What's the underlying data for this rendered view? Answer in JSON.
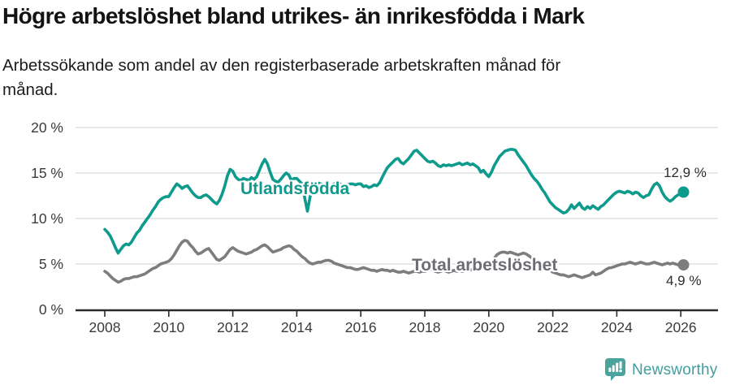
{
  "header": {
    "title": "Högre arbetslöshet bland utrikes- än inrikesfödda i Mark",
    "subtitle_line1": "Arbetssökande som andel av den registerbaserade arbetskraften månad för",
    "subtitle_line2": "månad."
  },
  "footer": {
    "brand": "Newsworthy",
    "brand_color": "#419e9e",
    "icon": "speech-bubble-bar-chart"
  },
  "chart_data": {
    "type": "line",
    "title": "Högre arbetslöshet bland utrikes- än inrikesfödda i Mark",
    "subtitle": "Arbetssökande som andel av den registerbaserade arbetskraften månad för månad.",
    "x_unit": "month",
    "x_start": "2008-01",
    "x_end": "2026-02",
    "x_tick_labels": [
      "2008",
      "2010",
      "2012",
      "2014",
      "2016",
      "2018",
      "2020",
      "2022",
      "2024",
      "2026"
    ],
    "y_tick_labels": [
      "0 %",
      "5 %",
      "10 %",
      "15 %",
      "20 %"
    ],
    "y_tick_values": [
      0,
      5,
      10,
      15,
      20
    ],
    "ylim": [
      0,
      20
    ],
    "grid": "horizontal",
    "gridline_color": "#d9d9d9",
    "axis_color": "#2b2b2b",
    "tick_label_color": "#3a3a3a",
    "legend_position": "inline-labels",
    "series": [
      {
        "name": "Utlandsfödda",
        "color": "#0e9a8c",
        "end_label": "12,9 %",
        "end_value": 12.9,
        "values": [
          8.8,
          8.5,
          8.1,
          7.5,
          6.8,
          6.2,
          6.6,
          7.0,
          7.2,
          7.1,
          7.4,
          7.9,
          8.4,
          8.7,
          9.2,
          9.6,
          10.0,
          10.4,
          10.9,
          11.3,
          11.8,
          12.1,
          12.3,
          12.4,
          12.4,
          12.9,
          13.4,
          13.8,
          13.6,
          13.3,
          13.5,
          13.6,
          13.2,
          12.8,
          12.5,
          12.3,
          12.3,
          12.5,
          12.6,
          12.4,
          12.1,
          11.8,
          11.6,
          12.0,
          12.7,
          13.6,
          14.7,
          15.4,
          15.2,
          14.6,
          14.3,
          14.2,
          14.4,
          14.3,
          14.2,
          14.5,
          14.3,
          14.6,
          15.3,
          16.0,
          16.5,
          16.0,
          15.1,
          14.3,
          14.1,
          14.0,
          14.3,
          14.7,
          15.0,
          14.8,
          14.2,
          14.4,
          14.4,
          14.1,
          13.8,
          12.2,
          10.8,
          12.4,
          13.5,
          13.8,
          13.9,
          13.8,
          13.7,
          13.6,
          13.6,
          13.7,
          13.8,
          13.9,
          13.8,
          13.7,
          13.6,
          13.7,
          13.8,
          13.8,
          13.7,
          13.8,
          13.8,
          13.5,
          13.6,
          13.4,
          13.5,
          13.7,
          13.6,
          13.9,
          14.5,
          15.1,
          15.6,
          15.9,
          16.2,
          16.5,
          16.6,
          16.2,
          16.0,
          16.3,
          16.6,
          17.0,
          17.4,
          17.5,
          17.2,
          16.9,
          16.6,
          16.3,
          16.2,
          16.3,
          16.1,
          15.8,
          15.7,
          15.9,
          15.8,
          15.9,
          15.8,
          15.9,
          16.0,
          16.1,
          15.9,
          16.0,
          16.1,
          15.9,
          16.0,
          15.8,
          15.6,
          15.1,
          15.3,
          14.9,
          14.6,
          15.1,
          15.8,
          16.3,
          16.8,
          17.1,
          17.4,
          17.5,
          17.6,
          17.6,
          17.5,
          17.0,
          16.6,
          16.2,
          15.8,
          15.3,
          14.8,
          14.4,
          14.1,
          13.7,
          13.2,
          12.8,
          12.3,
          11.8,
          11.5,
          11.2,
          11.0,
          10.8,
          10.6,
          10.7,
          11.0,
          11.5,
          11.1,
          11.4,
          11.7,
          11.2,
          11.0,
          11.3,
          11.1,
          11.4,
          11.2,
          11.0,
          11.3,
          11.5,
          11.8,
          12.1,
          12.4,
          12.7,
          12.9,
          13.0,
          12.9,
          12.8,
          13.0,
          12.9,
          12.7,
          12.9,
          12.8,
          12.5,
          12.3,
          12.5,
          12.6,
          13.2,
          13.7,
          13.9,
          13.6,
          12.9,
          12.4,
          12.1,
          11.9,
          12.1,
          12.4,
          12.6,
          12.7,
          12.9
        ]
      },
      {
        "name": "Total arbetslöshet",
        "color": "#7d7d7d",
        "end_label": "4,9 %",
        "end_value": 4.9,
        "values": [
          4.2,
          4.0,
          3.7,
          3.4,
          3.2,
          3.0,
          3.1,
          3.3,
          3.4,
          3.4,
          3.5,
          3.6,
          3.6,
          3.7,
          3.8,
          3.9,
          4.1,
          4.3,
          4.5,
          4.6,
          4.8,
          5.0,
          5.1,
          5.2,
          5.3,
          5.6,
          6.0,
          6.5,
          7.0,
          7.4,
          7.6,
          7.5,
          7.1,
          6.8,
          6.4,
          6.1,
          6.2,
          6.4,
          6.6,
          6.7,
          6.3,
          5.9,
          5.5,
          5.4,
          5.6,
          5.8,
          6.2,
          6.6,
          6.8,
          6.6,
          6.4,
          6.3,
          6.2,
          6.1,
          6.2,
          6.3,
          6.5,
          6.6,
          6.8,
          7.0,
          7.1,
          6.9,
          6.6,
          6.3,
          6.4,
          6.5,
          6.6,
          6.8,
          6.9,
          7.0,
          6.9,
          6.6,
          6.4,
          6.1,
          5.8,
          5.6,
          5.3,
          5.1,
          5.0,
          5.1,
          5.2,
          5.2,
          5.3,
          5.4,
          5.4,
          5.3,
          5.1,
          5.0,
          4.9,
          4.8,
          4.7,
          4.6,
          4.6,
          4.5,
          4.4,
          4.4,
          4.5,
          4.6,
          4.5,
          4.4,
          4.3,
          4.3,
          4.2,
          4.3,
          4.4,
          4.3,
          4.3,
          4.2,
          4.3,
          4.2,
          4.1,
          4.1,
          4.2,
          4.1,
          4.0,
          4.1,
          4.2,
          4.2,
          4.1,
          4.2,
          4.2,
          4.3,
          4.4,
          4.3,
          4.2,
          4.1,
          4.2,
          4.3,
          4.2,
          4.1,
          4.2,
          4.3,
          4.2,
          4.3,
          4.2,
          4.3,
          4.4,
          4.3,
          4.4,
          4.3,
          4.4,
          4.5,
          4.6,
          4.7,
          4.9,
          5.1,
          5.6,
          6.0,
          6.2,
          6.3,
          6.3,
          6.2,
          6.3,
          6.2,
          6.1,
          6.0,
          6.1,
          6.2,
          6.1,
          5.9,
          5.7,
          5.5,
          5.3,
          5.1,
          4.9,
          4.7,
          4.5,
          4.3,
          4.1,
          4.0,
          3.9,
          3.8,
          3.8,
          3.7,
          3.6,
          3.7,
          3.8,
          3.7,
          3.6,
          3.5,
          3.6,
          3.7,
          3.8,
          4.1,
          3.8,
          3.9,
          4.0,
          4.2,
          4.4,
          4.55,
          4.6,
          4.7,
          4.8,
          4.9,
          5.0,
          5.0,
          5.1,
          5.2,
          5.1,
          5.0,
          5.1,
          5.2,
          5.1,
          5.0,
          5.0,
          5.1,
          5.2,
          5.1,
          5.0,
          4.9,
          5.0,
          5.1,
          5.0,
          5.1,
          5.0,
          4.9,
          4.8,
          4.9
        ]
      }
    ]
  }
}
